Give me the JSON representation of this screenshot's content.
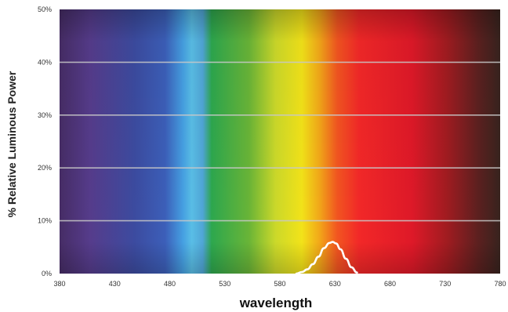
{
  "chart_data": {
    "type": "line",
    "xlabel": "wavelength",
    "ylabel": "% Relative Luminous Power",
    "xlim": [
      380,
      780
    ],
    "ylim": [
      0,
      50
    ],
    "x_ticks": [
      "380",
      "430",
      "480",
      "530",
      "580",
      "630",
      "680",
      "730",
      "780"
    ],
    "y_ticks": [
      "0%",
      "10%",
      "20%",
      "30%",
      "40%",
      "50%"
    ],
    "background": "visible spectrum gradient",
    "grid": true,
    "legend": "none",
    "series": [
      {
        "color": "#ffffff",
        "x": [
          595,
          600,
          605,
          610,
          615,
          620,
          625,
          628,
          631,
          635,
          640,
          645,
          650
        ],
        "y": [
          0,
          0.3,
          0.8,
          1.8,
          3.2,
          4.8,
          5.8,
          6.0,
          5.7,
          4.6,
          2.8,
          1.2,
          0.2
        ]
      }
    ]
  }
}
